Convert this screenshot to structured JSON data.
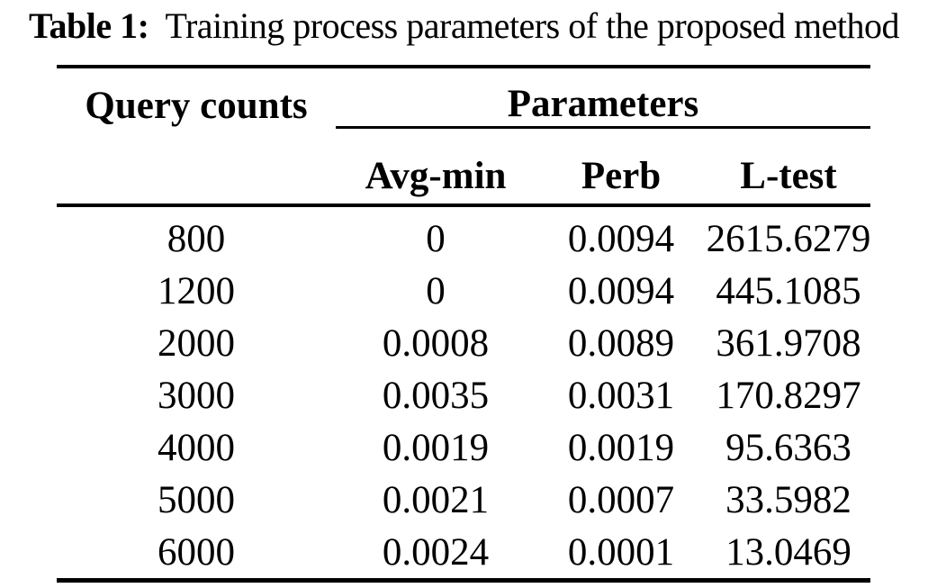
{
  "caption": {
    "label": "Table 1:",
    "text": "Training process parameters of the proposed method"
  },
  "table": {
    "query_header": "Query counts",
    "params_group_header": "Parameters",
    "sub_headers": [
      "Avg-min",
      "Perb",
      "L-test"
    ],
    "rows": [
      [
        "800",
        "0",
        "0.0094",
        "2615.6279"
      ],
      [
        "1200",
        "0",
        "0.0094",
        "445.1085"
      ],
      [
        "2000",
        "0.0008",
        "0.0089",
        "361.9708"
      ],
      [
        "3000",
        "0.0035",
        "0.0031",
        "170.8297"
      ],
      [
        "4000",
        "0.0019",
        "0.0019",
        "95.6363"
      ],
      [
        "5000",
        "0.0021",
        "0.0007",
        "33.5982"
      ],
      [
        "6000",
        "0.0024",
        "0.0001",
        "13.0469"
      ]
    ]
  }
}
